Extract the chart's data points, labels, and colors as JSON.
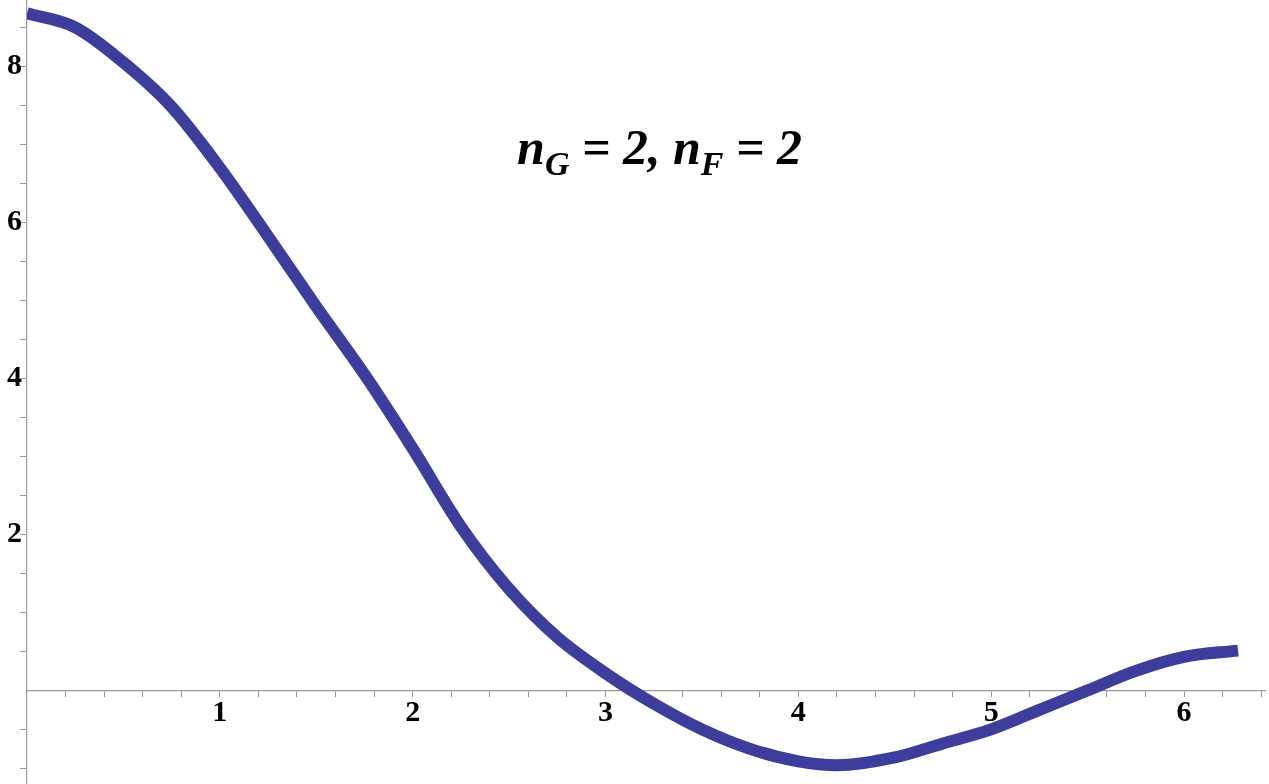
{
  "chart_data": {
    "type": "line",
    "title": "n$_{G}$ = 2, n$_{F}$ = 2",
    "x": [
      0,
      0.25,
      0.5,
      0.75,
      1.0,
      1.25,
      1.5,
      1.75,
      2.0,
      2.25,
      2.5,
      2.75,
      3.0,
      3.25,
      3.5,
      3.75,
      4.0,
      4.2,
      4.5,
      4.75,
      5.0,
      5.25,
      5.5,
      5.75,
      6.0,
      6.28
    ],
    "series": [
      {
        "color": "#3d3d9c",
        "values": [
          8.68,
          8.5,
          8.05,
          7.48,
          6.7,
          5.82,
          4.92,
          4.05,
          3.1,
          2.1,
          1.3,
          0.68,
          0.22,
          -0.17,
          -0.5,
          -0.75,
          -0.91,
          -0.96,
          -0.86,
          -0.68,
          -0.5,
          -0.25,
          0,
          0.25,
          0.43,
          0.51
        ]
      }
    ],
    "xlim": [
      0,
      6.42
    ],
    "ylim": [
      -1.2,
      8.85
    ],
    "xticks": [
      {
        "value": 0.2,
        "label": null
      },
      {
        "value": 0.4,
        "label": null
      },
      {
        "value": 0.6,
        "label": null
      },
      {
        "value": 0.8,
        "label": null
      },
      1,
      {
        "value": 1.2,
        "label": null
      },
      {
        "value": 1.4,
        "label": null
      },
      {
        "value": 1.6,
        "label": null
      },
      {
        "value": 1.8,
        "label": null
      },
      2,
      {
        "value": 2.2,
        "label": null
      },
      {
        "value": 2.4,
        "label": null
      },
      {
        "value": 2.6,
        "label": null
      },
      {
        "value": 2.8,
        "label": null
      },
      3,
      {
        "value": 3.2,
        "label": null
      },
      {
        "value": 3.4,
        "label": null
      },
      {
        "value": 3.6,
        "label": null
      },
      {
        "value": 3.8,
        "label": null
      },
      4,
      {
        "value": 4.2,
        "label": null
      },
      {
        "value": 4.4,
        "label": null
      },
      {
        "value": 4.6,
        "label": null
      },
      {
        "value": 4.8,
        "label": null
      },
      5,
      {
        "value": 5.2,
        "label": null
      },
      {
        "value": 5.4,
        "label": null
      },
      {
        "value": 5.6,
        "label": null
      },
      {
        "value": 5.8,
        "label": null
      },
      6,
      {
        "value": 6.2,
        "label": null
      },
      {
        "value": 6.4,
        "label": null
      }
    ],
    "yticks": [
      {
        "value": -1,
        "label": null
      },
      {
        "value": -0.5,
        "label": null
      },
      {
        "value": 0.5,
        "label": null
      },
      {
        "value": 1,
        "label": null
      },
      {
        "value": 1.5,
        "label": null
      },
      2,
      {
        "value": 2.5,
        "label": null
      },
      {
        "value": 3,
        "label": null
      },
      {
        "value": 3.5,
        "label": null
      },
      4,
      {
        "value": 4.5,
        "label": null
      },
      {
        "value": 5,
        "label": null
      },
      {
        "value": 5.5,
        "label": null
      },
      6,
      {
        "value": 6.5,
        "label": null
      },
      {
        "value": 7,
        "label": null
      },
      {
        "value": 7.5,
        "label": null
      },
      8,
      {
        "value": 8.5,
        "label": null
      }
    ],
    "grid": false,
    "legend": false,
    "marker": "none",
    "line_style": "solid"
  }
}
